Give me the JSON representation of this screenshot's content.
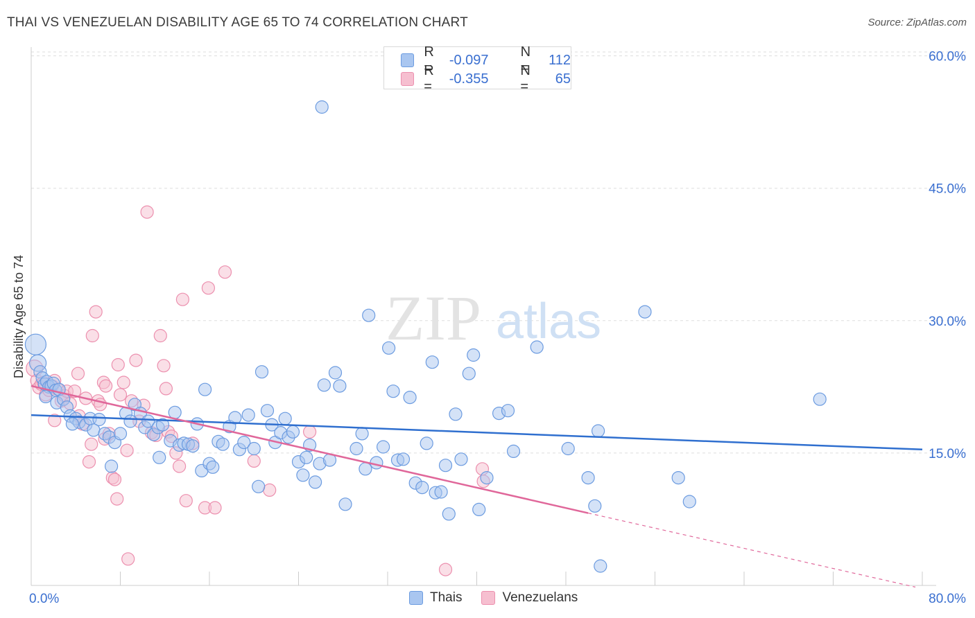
{
  "title": "THAI VS VENEZUELAN DISABILITY AGE 65 TO 74 CORRELATION CHART",
  "source": "Source: ZipAtlas.com",
  "watermark": {
    "zip": "ZIP",
    "atlas": "atlas"
  },
  "legend": {
    "r_label": "R =",
    "n_label": "N =",
    "rows": [
      {
        "r": "-0.097",
        "n": "112"
      },
      {
        "r": "-0.355",
        "n": "65"
      }
    ]
  },
  "colors": {
    "thais_fill": "#a9c6f0",
    "thais_stroke": "#6b9be0",
    "thais_line": "#2f6fcf",
    "venezuelans_fill": "#f6bfd0",
    "venezuelans_stroke": "#ec8fae",
    "venezuelans_line": "#e0679a",
    "axis_text": "#3a6fd0",
    "grid": "#dddddd"
  },
  "chart_data": {
    "type": "scatter",
    "title": "THAI VS VENEZUELAN DISABILITY AGE 65 TO 74 CORRELATION CHART",
    "xlabel": "",
    "ylabel": "Disability Age 65 to 74",
    "xlim": [
      0,
      80
    ],
    "ylim": [
      0,
      63
    ],
    "x_tick_labels": [
      "0.0%",
      "80.0%"
    ],
    "y_ticks": [
      15,
      30,
      45,
      60
    ],
    "y_tick_labels": [
      "15.0%",
      "30.0%",
      "45.0%",
      "60.0%"
    ],
    "grid": "horizontal dashed",
    "legend_position": "top-center",
    "series": [
      {
        "name": "Thais",
        "r": -0.097,
        "n": 112,
        "trend": {
          "x": [
            0,
            80
          ],
          "y": [
            19.3,
            15.4
          ]
        },
        "points": [
          [
            0.4,
            27.3
          ],
          [
            0.6,
            25.2
          ],
          [
            0.8,
            24.2
          ],
          [
            1.0,
            23.5
          ],
          [
            1.2,
            22.8
          ],
          [
            1.4,
            23.1
          ],
          [
            1.6,
            22.5
          ],
          [
            1.8,
            22.6
          ],
          [
            2.0,
            22.9
          ],
          [
            2.2,
            22.1
          ],
          [
            2.5,
            22.2
          ],
          [
            1.3,
            21.4
          ],
          [
            2.3,
            20.7
          ],
          [
            2.9,
            21.1
          ],
          [
            3.2,
            20.2
          ],
          [
            3.5,
            19.2
          ],
          [
            4.0,
            18.9
          ],
          [
            4.3,
            18.5
          ],
          [
            4.9,
            18.2
          ],
          [
            5.3,
            18.9
          ],
          [
            3.7,
            18.3
          ],
          [
            6.1,
            18.8
          ],
          [
            5.6,
            17.6
          ],
          [
            6.6,
            17.2
          ],
          [
            7.0,
            16.8
          ],
          [
            7.5,
            16.2
          ],
          [
            8.0,
            17.2
          ],
          [
            8.5,
            19.5
          ],
          [
            8.9,
            18.6
          ],
          [
            9.3,
            20.5
          ],
          [
            9.8,
            19.5
          ],
          [
            10.2,
            17.9
          ],
          [
            10.5,
            18.6
          ],
          [
            11.0,
            17.1
          ],
          [
            11.4,
            17.9
          ],
          [
            11.8,
            18.2
          ],
          [
            7.2,
            13.5
          ],
          [
            11.5,
            14.5
          ],
          [
            12.5,
            16.4
          ],
          [
            12.9,
            19.6
          ],
          [
            13.3,
            15.9
          ],
          [
            13.7,
            16.1
          ],
          [
            14.1,
            16.0
          ],
          [
            14.5,
            15.8
          ],
          [
            14.9,
            18.3
          ],
          [
            15.3,
            13.0
          ],
          [
            15.6,
            22.2
          ],
          [
            16.0,
            13.8
          ],
          [
            16.3,
            13.4
          ],
          [
            16.8,
            16.3
          ],
          [
            17.2,
            16.0
          ],
          [
            17.8,
            18.0
          ],
          [
            18.3,
            19.0
          ],
          [
            18.7,
            15.4
          ],
          [
            19.1,
            16.2
          ],
          [
            19.5,
            19.3
          ],
          [
            20.0,
            15.5
          ],
          [
            20.4,
            11.2
          ],
          [
            20.7,
            24.2
          ],
          [
            21.2,
            19.8
          ],
          [
            21.6,
            18.2
          ],
          [
            21.9,
            16.2
          ],
          [
            22.4,
            17.3
          ],
          [
            22.8,
            18.9
          ],
          [
            23.1,
            16.8
          ],
          [
            23.5,
            17.4
          ],
          [
            24.0,
            14.0
          ],
          [
            24.4,
            12.5
          ],
          [
            24.7,
            14.5
          ],
          [
            25.0,
            15.9
          ],
          [
            25.5,
            11.7
          ],
          [
            25.9,
            13.8
          ],
          [
            26.3,
            22.7
          ],
          [
            26.8,
            14.2
          ],
          [
            27.3,
            24.1
          ],
          [
            27.7,
            22.6
          ],
          [
            28.2,
            9.2
          ],
          [
            29.2,
            15.5
          ],
          [
            29.7,
            17.2
          ],
          [
            30.0,
            13.2
          ],
          [
            30.3,
            30.6
          ],
          [
            31.0,
            13.9
          ],
          [
            31.6,
            15.7
          ],
          [
            32.1,
            26.9
          ],
          [
            32.5,
            22.0
          ],
          [
            32.9,
            14.2
          ],
          [
            33.4,
            14.3
          ],
          [
            34.0,
            21.3
          ],
          [
            34.5,
            11.6
          ],
          [
            35.1,
            11.1
          ],
          [
            35.5,
            16.1
          ],
          [
            36.0,
            25.3
          ],
          [
            36.3,
            10.5
          ],
          [
            36.8,
            10.6
          ],
          [
            37.2,
            13.6
          ],
          [
            37.5,
            8.1
          ],
          [
            38.1,
            19.4
          ],
          [
            38.6,
            14.3
          ],
          [
            39.3,
            24.0
          ],
          [
            39.7,
            26.1
          ],
          [
            40.2,
            8.6
          ],
          [
            40.9,
            12.2
          ],
          [
            42.0,
            19.5
          ],
          [
            42.8,
            19.8
          ],
          [
            43.3,
            15.2
          ],
          [
            45.4,
            27.0
          ],
          [
            48.2,
            15.5
          ],
          [
            50.0,
            12.2
          ],
          [
            50.6,
            9.0
          ],
          [
            50.9,
            17.5
          ],
          [
            51.1,
            2.2
          ],
          [
            55.1,
            31.0
          ],
          [
            58.1,
            12.2
          ],
          [
            59.1,
            9.5
          ],
          [
            70.8,
            21.1
          ],
          [
            26.1,
            54.2
          ]
        ]
      },
      {
        "name": "Venezuelans",
        "r": -0.355,
        "n": 65,
        "trend": {
          "x": [
            0,
            50
          ],
          "y": [
            22.6,
            8.2
          ]
        },
        "trend_dashed": {
          "x": [
            50,
            80
          ],
          "y": [
            8.2,
            -0.5
          ]
        },
        "points": [
          [
            0.3,
            24.6
          ],
          [
            0.5,
            23.2
          ],
          [
            0.7,
            22.4
          ],
          [
            0.9,
            22.8
          ],
          [
            1.1,
            23.0
          ],
          [
            1.3,
            21.6
          ],
          [
            1.6,
            22.1
          ],
          [
            1.9,
            22.6
          ],
          [
            2.1,
            23.2
          ],
          [
            2.4,
            22.2
          ],
          [
            2.1,
            18.7
          ],
          [
            2.7,
            20.9
          ],
          [
            3.0,
            21.5
          ],
          [
            3.2,
            22.0
          ],
          [
            3.5,
            20.6
          ],
          [
            3.9,
            22.0
          ],
          [
            4.3,
            19.2
          ],
          [
            4.6,
            18.3
          ],
          [
            4.2,
            24.0
          ],
          [
            4.9,
            21.2
          ],
          [
            5.2,
            14.0
          ],
          [
            5.5,
            28.3
          ],
          [
            5.8,
            31.0
          ],
          [
            5.4,
            16.0
          ],
          [
            6.0,
            20.9
          ],
          [
            6.2,
            20.5
          ],
          [
            6.5,
            23.0
          ],
          [
            6.7,
            22.6
          ],
          [
            6.6,
            16.6
          ],
          [
            7.0,
            17.2
          ],
          [
            7.3,
            12.2
          ],
          [
            7.5,
            12.0
          ],
          [
            7.7,
            9.8
          ],
          [
            7.8,
            25.0
          ],
          [
            8.0,
            21.6
          ],
          [
            8.3,
            23.0
          ],
          [
            8.6,
            15.3
          ],
          [
            8.7,
            3.0
          ],
          [
            9.0,
            20.9
          ],
          [
            9.4,
            25.5
          ],
          [
            9.7,
            18.6
          ],
          [
            10.1,
            20.4
          ],
          [
            10.4,
            42.3
          ],
          [
            10.8,
            17.3
          ],
          [
            11.2,
            17.0
          ],
          [
            11.6,
            28.3
          ],
          [
            11.9,
            24.9
          ],
          [
            12.1,
            22.3
          ],
          [
            12.3,
            17.4
          ],
          [
            12.6,
            16.9
          ],
          [
            13.0,
            15.0
          ],
          [
            13.3,
            13.5
          ],
          [
            13.6,
            32.4
          ],
          [
            13.9,
            9.6
          ],
          [
            14.5,
            16.1
          ],
          [
            15.6,
            8.8
          ],
          [
            15.9,
            33.7
          ],
          [
            16.5,
            8.8
          ],
          [
            17.4,
            35.5
          ],
          [
            20.0,
            14.1
          ],
          [
            21.4,
            10.8
          ],
          [
            25.0,
            17.4
          ],
          [
            37.2,
            1.8
          ],
          [
            40.5,
            13.2
          ],
          [
            40.6,
            11.8
          ]
        ]
      }
    ]
  }
}
